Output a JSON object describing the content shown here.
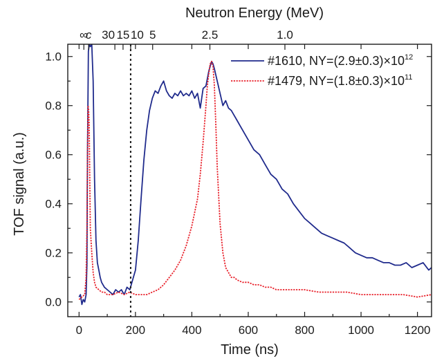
{
  "chart_data": {
    "type": "line",
    "xlabel": "Time (ns)",
    "ylabel": "TOF signal (a.u.)",
    "x2label": "Neutron Energy (MeV)",
    "xlim": [
      -40,
      1250
    ],
    "ylim": [
      -0.06,
      1.05
    ],
    "xticks": [
      0,
      200,
      400,
      600,
      800,
      1000,
      1200
    ],
    "xtick_labels": [
      "0",
      "200",
      "400",
      "600",
      "800",
      "1000",
      "1200"
    ],
    "yticks": [
      0.0,
      0.2,
      0.4,
      0.6,
      0.8,
      1.0
    ],
    "ytick_labels": [
      "0.0",
      "0.2",
      "0.4",
      "0.6",
      "0.8",
      "1.0"
    ],
    "top_ticks": [
      {
        "x": 17,
        "label": "∞"
      },
      {
        "x": 34,
        "label": "c"
      },
      {
        "x": 127,
        "label": "30"
      },
      {
        "x": 156,
        "label": "15"
      },
      {
        "x": 183,
        "label": "10"
      },
      {
        "x": 261,
        "label": "5"
      },
      {
        "x": 464,
        "label": "2.5"
      },
      {
        "x": 730,
        "label": "1.0"
      }
    ],
    "vline_x": 183,
    "legend_position": "top-right",
    "series": [
      {
        "name": "#1610",
        "legend_main": "#1610, NY=(2.9±0.3)×10",
        "legend_exp": "12",
        "color": "#1f2a8c",
        "dash": "solid",
        "x": [
          0,
          5,
          10,
          15,
          20,
          25,
          28,
          30,
          33,
          36,
          40,
          45,
          50,
          55,
          60,
          65,
          70,
          75,
          80,
          90,
          100,
          110,
          120,
          130,
          140,
          150,
          160,
          170,
          180,
          190,
          200,
          210,
          220,
          230,
          240,
          250,
          260,
          270,
          280,
          290,
          300,
          310,
          320,
          330,
          340,
          350,
          360,
          370,
          380,
          390,
          400,
          410,
          420,
          430,
          440,
          450,
          460,
          465,
          470,
          475,
          480,
          490,
          500,
          510,
          520,
          530,
          540,
          550,
          560,
          570,
          580,
          590,
          600,
          620,
          640,
          660,
          680,
          700,
          720,
          740,
          760,
          780,
          800,
          820,
          840,
          860,
          880,
          900,
          920,
          940,
          960,
          980,
          1000,
          1020,
          1040,
          1060,
          1080,
          1100,
          1120,
          1140,
          1160,
          1180,
          1200,
          1220,
          1240,
          1250
        ],
        "y": [
          0.02,
          0.03,
          -0.01,
          0.01,
          0.0,
          0.03,
          0.15,
          0.6,
          1.02,
          1.05,
          1.04,
          1.05,
          0.9,
          0.5,
          0.25,
          0.16,
          0.13,
          0.1,
          0.08,
          0.06,
          0.05,
          0.04,
          0.03,
          0.05,
          0.04,
          0.05,
          0.03,
          0.06,
          0.05,
          0.09,
          0.13,
          0.25,
          0.42,
          0.58,
          0.7,
          0.78,
          0.83,
          0.86,
          0.85,
          0.88,
          0.9,
          0.86,
          0.84,
          0.83,
          0.85,
          0.84,
          0.86,
          0.84,
          0.85,
          0.84,
          0.86,
          0.83,
          0.85,
          0.79,
          0.87,
          0.88,
          0.94,
          0.96,
          0.98,
          0.97,
          0.95,
          0.9,
          0.85,
          0.8,
          0.82,
          0.79,
          0.78,
          0.76,
          0.74,
          0.72,
          0.7,
          0.68,
          0.66,
          0.62,
          0.6,
          0.56,
          0.52,
          0.5,
          0.46,
          0.44,
          0.4,
          0.37,
          0.34,
          0.32,
          0.3,
          0.28,
          0.27,
          0.26,
          0.25,
          0.24,
          0.22,
          0.2,
          0.19,
          0.18,
          0.18,
          0.17,
          0.16,
          0.16,
          0.15,
          0.15,
          0.16,
          0.14,
          0.15,
          0.16,
          0.13,
          0.14
        ]
      },
      {
        "name": "#1479",
        "legend_main": "#1479, NY=(1.8±0.3)×10",
        "legend_exp": "11",
        "color": "#e8202a",
        "dash": "dotted",
        "x": [
          0,
          10,
          20,
          25,
          28,
          30,
          32,
          34,
          36,
          38,
          40,
          45,
          50,
          55,
          60,
          70,
          80,
          90,
          100,
          120,
          140,
          160,
          180,
          200,
          220,
          240,
          260,
          280,
          300,
          320,
          340,
          360,
          380,
          400,
          420,
          430,
          440,
          450,
          455,
          460,
          465,
          470,
          475,
          480,
          485,
          490,
          500,
          510,
          520,
          530,
          540,
          550,
          560,
          580,
          600,
          620,
          640,
          660,
          680,
          700,
          750,
          800,
          850,
          900,
          950,
          1000,
          1050,
          1100,
          1150,
          1200,
          1250
        ],
        "y": [
          0.01,
          0.02,
          0.03,
          0.1,
          0.3,
          0.6,
          0.8,
          0.78,
          0.72,
          0.5,
          0.3,
          0.2,
          0.12,
          0.08,
          0.06,
          0.05,
          0.04,
          0.04,
          0.03,
          0.03,
          0.04,
          0.03,
          0.04,
          0.03,
          0.03,
          0.03,
          0.04,
          0.05,
          0.07,
          0.1,
          0.13,
          0.17,
          0.23,
          0.31,
          0.42,
          0.52,
          0.65,
          0.8,
          0.88,
          0.93,
          0.97,
          0.98,
          0.96,
          0.88,
          0.72,
          0.55,
          0.32,
          0.2,
          0.14,
          0.12,
          0.1,
          0.1,
          0.09,
          0.08,
          0.08,
          0.07,
          0.07,
          0.06,
          0.06,
          0.05,
          0.05,
          0.05,
          0.04,
          0.04,
          0.04,
          0.03,
          0.03,
          0.03,
          0.03,
          0.02,
          0.03
        ]
      }
    ]
  }
}
